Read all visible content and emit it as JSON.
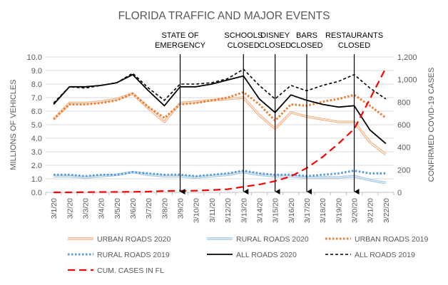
{
  "chart_data": {
    "type": "line",
    "title": "FLORIDA TRAFFIC AND MAJOR EVENTS",
    "xlabel": "",
    "ylabel": "MILLIONS OF VEHICLES",
    "y2label": "CONFIRMED  COVID-19 CASES",
    "ylim": [
      0,
      10
    ],
    "y2lim": [
      0,
      1200
    ],
    "yticks": [
      "0.0",
      "1.0",
      "2.0",
      "3.0",
      "4.0",
      "5.0",
      "6.0",
      "7.0",
      "8.0",
      "9.0",
      "10.0"
    ],
    "y2ticks": [
      "0",
      "200",
      "400",
      "600",
      "800",
      "1,000",
      "1,200"
    ],
    "grid": true,
    "categories": [
      "3/1/20",
      "3/2/20",
      "3/3/20",
      "3/4/20",
      "3/5/20",
      "3/6/20",
      "3/7/20",
      "3/8/20",
      "3/9/20",
      "3/10/20",
      "3/11/20",
      "3/12/20",
      "3/13/20",
      "3/14/20",
      "3/15/20",
      "3/16/20",
      "3/17/20",
      "3/18/20",
      "3/19/20",
      "3/20/20",
      "3/21/20",
      "3/22/20"
    ],
    "series": [
      {
        "name": "URBAN ROADS 2020",
        "axis": "left",
        "color": "#f4b183",
        "style": "double",
        "values": [
          5.4,
          6.6,
          6.6,
          6.7,
          6.9,
          7.3,
          6.2,
          5.2,
          6.6,
          6.7,
          6.8,
          6.9,
          7.0,
          5.7,
          4.7,
          5.9,
          5.6,
          5.4,
          5.2,
          5.2,
          3.7,
          2.8
        ]
      },
      {
        "name": "RURAL ROADS 2020",
        "axis": "left",
        "color": "#9dc3e6",
        "style": "double",
        "values": [
          1.2,
          1.2,
          1.1,
          1.2,
          1.3,
          1.5,
          1.3,
          1.2,
          1.2,
          1.1,
          1.2,
          1.3,
          1.5,
          1.3,
          1.2,
          1.2,
          1.1,
          1.1,
          1.1,
          1.2,
          0.9,
          0.7
        ]
      },
      {
        "name": "URBAN ROADS 2019",
        "axis": "left",
        "color": "#ed7d31",
        "style": "dotted",
        "values": [
          5.4,
          6.5,
          6.5,
          6.6,
          6.8,
          7.3,
          6.3,
          5.5,
          6.5,
          6.6,
          6.8,
          7.0,
          7.4,
          6.5,
          5.3,
          6.5,
          6.4,
          6.7,
          6.9,
          7.2,
          6.4,
          5.5
        ]
      },
      {
        "name": "RURAL ROADS 2019",
        "axis": "left",
        "color": "#5b9bd5",
        "style": "dotted",
        "values": [
          1.3,
          1.3,
          1.2,
          1.3,
          1.3,
          1.5,
          1.4,
          1.3,
          1.3,
          1.2,
          1.3,
          1.4,
          1.6,
          1.4,
          1.3,
          1.3,
          1.2,
          1.3,
          1.4,
          1.6,
          1.4,
          1.4
        ]
      },
      {
        "name": "ALL ROADS 2020",
        "axis": "left",
        "color": "#000000",
        "style": "solid",
        "values": [
          6.5,
          7.8,
          7.8,
          7.9,
          8.1,
          8.7,
          7.5,
          6.4,
          7.8,
          7.8,
          8.0,
          8.3,
          8.6,
          6.9,
          5.9,
          7.2,
          6.8,
          6.5,
          6.3,
          6.4,
          4.6,
          3.6
        ]
      },
      {
        "name": "ALL ROADS 2019",
        "axis": "left",
        "color": "#000000",
        "style": "dashed",
        "values": [
          6.6,
          7.8,
          7.7,
          7.9,
          8.1,
          8.8,
          7.7,
          6.8,
          8.0,
          8.0,
          8.1,
          8.4,
          9.1,
          7.9,
          6.9,
          7.9,
          7.5,
          7.9,
          8.2,
          8.7,
          7.7,
          6.9
        ]
      },
      {
        "name": "CUM. CASES IN FL",
        "axis": "right",
        "color": "#ff0000",
        "style": "longdash",
        "values": [
          0,
          0,
          2,
          3,
          4,
          5,
          7,
          12,
          14,
          15,
          21,
          28,
          50,
          70,
          100,
          142,
          216,
          314,
          432,
          563,
          830,
          1104
        ]
      }
    ],
    "annotations": [
      {
        "label": [
          "STATE OF",
          "EMERGENCY"
        ],
        "category": "3/9/20"
      },
      {
        "label": [
          "SCHOOLS",
          "CLOSED"
        ],
        "category": "3/13/20"
      },
      {
        "label": [
          "DISNEY",
          "CLOSED"
        ],
        "category": "3/15/20"
      },
      {
        "label": [
          "BARS",
          "CLOSED"
        ],
        "category": "3/17/20"
      },
      {
        "label": [
          "RESTAURANTS",
          "CLOSED"
        ],
        "category": "3/20/20"
      }
    ],
    "legend_placement": "bottom"
  }
}
